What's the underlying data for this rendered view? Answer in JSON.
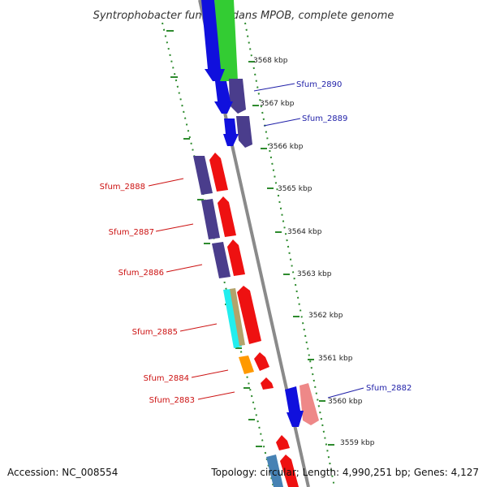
{
  "title": "Syntrophobacter fumaroxidans MPOB, complete genome",
  "footer": {
    "accession": "Accession: NC_008554",
    "summary": "Topology: circular; Length: 4,990,251 bp; Genes: 4,127"
  },
  "ruler": [
    {
      "kbp": 3568,
      "label": "3568 kbp"
    },
    {
      "kbp": 3567,
      "label": "3567 kbp"
    },
    {
      "kbp": 3566,
      "label": "3566 kbp"
    },
    {
      "kbp": 3565,
      "label": "3565 kbp"
    },
    {
      "kbp": 3564,
      "label": "3564 kbp"
    },
    {
      "kbp": 3563,
      "label": "3563 kbp"
    },
    {
      "kbp": 3562,
      "label": "3562 kbp"
    },
    {
      "kbp": 3561,
      "label": "3561 kbp"
    },
    {
      "kbp": 3560,
      "label": "3560 kbp"
    },
    {
      "kbp": 3559,
      "label": "3559 kbp"
    }
  ],
  "labels": [
    {
      "text": "Sfum_2890",
      "side": "right",
      "color": "#1f1fa8"
    },
    {
      "text": "Sfum_2889",
      "side": "right",
      "color": "#1f1fa8"
    },
    {
      "text": "Sfum_2888",
      "side": "left",
      "color": "#cc1111"
    },
    {
      "text": "Sfum_2887",
      "side": "left",
      "color": "#cc1111"
    },
    {
      "text": "Sfum_2886",
      "side": "left",
      "color": "#cc1111"
    },
    {
      "text": "Sfum_2885",
      "side": "left",
      "color": "#cc1111"
    },
    {
      "text": "Sfum_2884",
      "side": "left",
      "color": "#cc1111"
    },
    {
      "text": "Sfum_2883",
      "side": "left",
      "color": "#cc1111"
    },
    {
      "text": "Sfum_2882",
      "side": "right",
      "color": "#1f1fa8"
    }
  ],
  "colors": {
    "backbone": "#8a8a8a",
    "ticks": "#2e8b2e",
    "blue": "#1010dd",
    "navy": "#4a3d8c",
    "red": "#ee1111",
    "green": "#33cc33",
    "cyan": "#22eeee",
    "khaki": "#b3a36b",
    "orange": "#ff9900",
    "pink": "#ee8888",
    "steel": "#4682b4"
  }
}
